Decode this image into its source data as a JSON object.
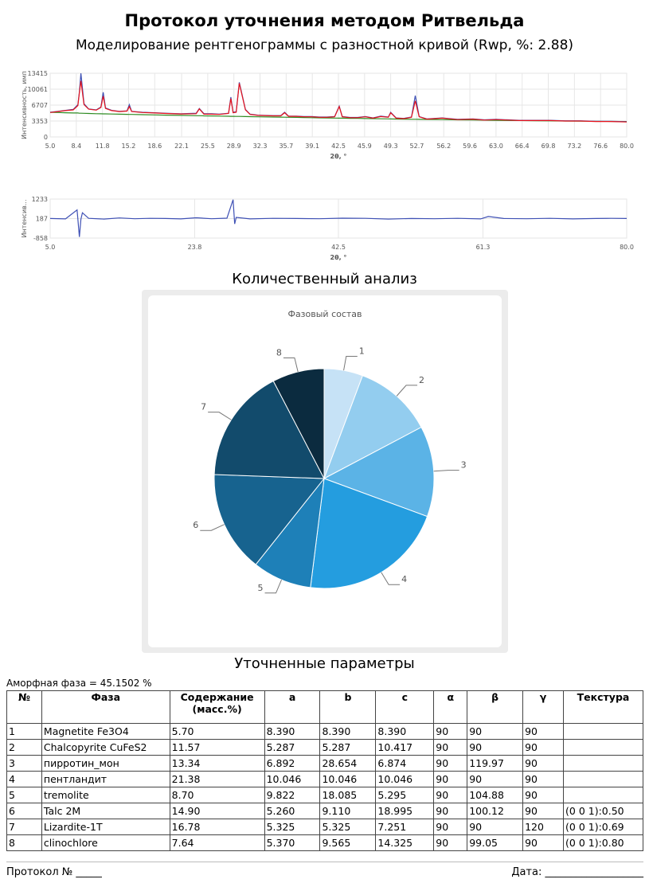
{
  "header": {
    "title": "Протокол уточнения методом Ритвельда",
    "subtitle": "Моделирование рентгенограммы с разностной кривой (Rwp, %: 2.88)"
  },
  "chart_data": [
    {
      "type": "line",
      "xlabel": "2θ, °",
      "ylabel": "Интенсивность, имп",
      "grid": true,
      "xlim": [
        5,
        80
      ],
      "ylim": [
        0,
        13415
      ],
      "xticks": [
        {
          "value": 5,
          "label": "5.0"
        },
        8.4,
        11.8,
        15.2,
        18.6,
        22.1,
        25.5,
        28.9,
        32.3,
        35.7,
        39.1,
        42.5,
        45.9,
        49.3,
        52.7,
        56.2,
        59.6,
        {
          "value": 63,
          "label": "63.0"
        },
        66.4,
        69.8,
        73.2,
        76.6,
        {
          "value": 80,
          "label": "80.0"
        }
      ],
      "yticks": [
        0,
        3353,
        6707,
        10061,
        13415
      ],
      "x": [
        5,
        6,
        7,
        8,
        8.6,
        8.8,
        9,
        9.4,
        10,
        11,
        11.6,
        11.9,
        12.2,
        13,
        14,
        15,
        15.3,
        15.6,
        17,
        18.6,
        20,
        22,
        24,
        24.4,
        25,
        26,
        27,
        28.2,
        28.5,
        28.8,
        29.2,
        29.6,
        30.4,
        31,
        32,
        34,
        35,
        35.5,
        36,
        37,
        38,
        39,
        40,
        41,
        42,
        42.6,
        43,
        44,
        45,
        46,
        47,
        48,
        49,
        49.3,
        50,
        51,
        52,
        52.5,
        53,
        54,
        56,
        58,
        60,
        61.5,
        63,
        66,
        68,
        70,
        72,
        74,
        76,
        78,
        80
      ],
      "series": [
        {
          "color": "#2e8b22",
          "values": [
            5200,
            5150,
            5100,
            5050,
            5050,
            5000,
            5000,
            4980,
            4950,
            4900,
            4880,
            4870,
            4860,
            4830,
            4800,
            4760,
            4750,
            4740,
            4690,
            4640,
            4600,
            4540,
            4480,
            4470,
            4450,
            4420,
            4390,
            4360,
            4350,
            4340,
            4330,
            4320,
            4300,
            4280,
            4250,
            4200,
            4170,
            4160,
            4150,
            4120,
            4090,
            4060,
            4030,
            4000,
            3980,
            3960,
            3950,
            3920,
            3900,
            3870,
            3850,
            3820,
            3800,
            3790,
            3780,
            3750,
            3730,
            3720,
            3710,
            3690,
            3650,
            3610,
            3570,
            3540,
            3510,
            3460,
            3420,
            3390,
            3360,
            3330,
            3300,
            3270,
            3250
          ]
        },
        {
          "color": "#3f51b5",
          "values": [
            5200,
            5400,
            5600,
            5800,
            6800,
            9500,
            13415,
            7000,
            5900,
            5700,
            6300,
            9400,
            6100,
            5600,
            5400,
            5500,
            6800,
            5400,
            5200,
            5100,
            5000,
            4900,
            5000,
            6000,
            4900,
            4900,
            4800,
            5000,
            8400,
            5200,
            5300,
            11500,
            5800,
            4800,
            4600,
            4500,
            4500,
            5200,
            4400,
            4400,
            4300,
            4300,
            4200,
            4200,
            4300,
            6500,
            4300,
            4100,
            4100,
            4300,
            4000,
            4400,
            4200,
            5200,
            4000,
            3900,
            4200,
            8700,
            4300,
            3800,
            4000,
            3700,
            3800,
            3600,
            3700,
            3500,
            3500,
            3500,
            3400,
            3400,
            3300,
            3300,
            3200
          ]
        },
        {
          "color": "#e8141c",
          "values": [
            5150,
            5350,
            5550,
            5700,
            6600,
            9300,
            11800,
            6800,
            5850,
            5650,
            6200,
            8600,
            6000,
            5550,
            5350,
            5450,
            6400,
            5350,
            5150,
            5050,
            4950,
            4850,
            4900,
            5900,
            4800,
            4800,
            4750,
            4950,
            8100,
            5100,
            5200,
            11300,
            5700,
            4750,
            4550,
            4450,
            4450,
            5100,
            4350,
            4350,
            4250,
            4250,
            4150,
            4150,
            4250,
            6400,
            4250,
            4050,
            4050,
            4250,
            3950,
            4300,
            4150,
            5100,
            3950,
            3850,
            4150,
            7600,
            4250,
            3750,
            3950,
            3650,
            3750,
            3550,
            3650,
            3450,
            3450,
            3450,
            3350,
            3350,
            3250,
            3250,
            3150
          ]
        }
      ]
    },
    {
      "type": "line",
      "xlabel": "2θ, °",
      "ylabel": "Интенсив...",
      "grid": true,
      "xlim": [
        5,
        80
      ],
      "ylim": [
        -858,
        1233
      ],
      "xticks": [
        {
          "value": 5,
          "label": "5.0"
        },
        23.8,
        42.5,
        61.3,
        {
          "value": 80,
          "label": "80.0"
        }
      ],
      "yticks": [
        -858,
        187,
        1233
      ],
      "x": [
        5,
        7,
        8.5,
        8.8,
        9,
        9.2,
        10,
        12,
        14,
        16,
        18,
        20,
        22,
        24,
        26,
        28,
        28.8,
        29,
        29.2,
        31,
        34,
        37,
        40,
        43,
        46,
        49,
        52,
        55,
        58,
        61,
        62,
        64,
        67,
        70,
        73,
        76,
        78,
        80
      ],
      "series": [
        {
          "color": "#3f51b5",
          "values": [
            190,
            170,
            650,
            -800,
            150,
            500,
            200,
            160,
            220,
            180,
            200,
            190,
            170,
            230,
            180,
            210,
            1200,
            -100,
            250,
            170,
            200,
            190,
            180,
            210,
            200,
            160,
            190,
            180,
            200,
            170,
            300,
            190,
            180,
            200,
            170,
            190,
            200,
            190
          ]
        }
      ]
    },
    {
      "type": "pie",
      "title": "Фазовый состав",
      "categories": [
        "1",
        "2",
        "3",
        "4",
        "5",
        "6",
        "7",
        "8"
      ],
      "values": [
        5.7,
        11.57,
        13.34,
        21.38,
        8.7,
        14.9,
        16.78,
        7.64
      ],
      "colors": [
        "#c6e2f6",
        "#93cdef",
        "#5bb3e6",
        "#249ddf",
        "#1e80b8",
        "#17638f",
        "#124b6c",
        "#0b2b3f"
      ]
    }
  ],
  "sections": {
    "quant": "Количественный анализ",
    "params": "Уточненные параметры"
  },
  "table": {
    "note": "Аморфная фаза = 45.1502 %",
    "header": [
      "№",
      "Фаза",
      "Содержание (масс.%)",
      "a",
      "b",
      "c",
      "α",
      "β",
      "γ",
      "Текстура"
    ],
    "rows": [
      [
        "1",
        "Magnetite Fe3O4",
        "5.70",
        "8.390",
        "8.390",
        "8.390",
        "90",
        "90",
        "90"
      ],
      [
        "2",
        "Chalcopyrite CuFeS2",
        "11.57",
        "5.287",
        "5.287",
        "10.417",
        "90",
        "90",
        "90"
      ],
      [
        "3",
        "пирротин_мон",
        "13.34",
        "6.892",
        "28.654",
        "6.874",
        "90",
        "119.97",
        "90"
      ],
      [
        "4",
        "пентландит",
        "21.38",
        "10.046",
        "10.046",
        "10.046",
        "90",
        "90",
        "90"
      ],
      [
        "5",
        "tremolite",
        "8.70",
        "9.822",
        "18.085",
        "5.295",
        "90",
        "104.88",
        "90"
      ],
      [
        "6",
        "Talc 2M",
        "14.90",
        "5.260",
        "9.110",
        "18.995",
        "90",
        "100.12",
        "90",
        "(0 0 1):0.50"
      ],
      [
        "7",
        "Lizardite-1T",
        "16.78",
        "5.325",
        "5.325",
        "7.251",
        "90",
        "90",
        "120",
        "(0 0 1):0.69"
      ],
      [
        "8",
        "clinochlore",
        "7.64",
        "5.370",
        "9.565",
        "14.325",
        "90",
        "99.05",
        "90",
        "(0 0 1):0.80"
      ]
    ]
  },
  "footer": {
    "protocol": "Протокол № _____",
    "date": "Дата: ___________________"
  }
}
